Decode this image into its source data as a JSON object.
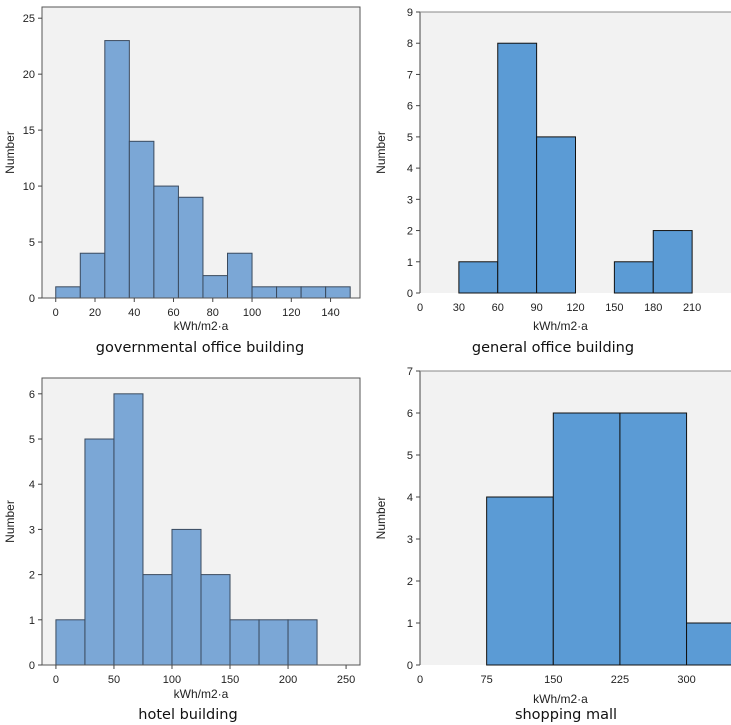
{
  "chart_data": [
    {
      "type": "bar",
      "caption": "governmental office building",
      "xlabel": "kWh/m2·a",
      "ylabel": "Number",
      "bin_width": 12.5,
      "bins_start": [
        0,
        12.5,
        25,
        37.5,
        50,
        62.5,
        75,
        87.5,
        100,
        112.5,
        125,
        137.5
      ],
      "values": [
        1,
        4,
        23,
        14,
        10,
        9,
        2,
        4,
        1,
        1,
        1,
        1
      ],
      "xlim": [
        -7,
        155
      ],
      "ylim": [
        0,
        26
      ],
      "xticks": [
        0,
        20,
        40,
        60,
        80,
        100,
        120,
        140
      ],
      "yticks": [
        0,
        5,
        10,
        15,
        20,
        25
      ],
      "bar_color": "#7ba7d6",
      "background": "#f2f2f2"
    },
    {
      "type": "bar",
      "caption": "general office building",
      "xlabel": "kWh/m2·a",
      "ylabel": "Number",
      "bin_width": 30,
      "bins_start": [
        30,
        60,
        90,
        150,
        180
      ],
      "values": [
        1,
        8,
        5,
        1,
        2
      ],
      "xlim": [
        0,
        240
      ],
      "ylim": [
        0,
        9
      ],
      "xticks": [
        0,
        30,
        60,
        90,
        120,
        150,
        180,
        210
      ],
      "xtick_labels": [
        "0",
        "30",
        "60",
        "90",
        "120",
        "150",
        "180",
        "210"
      ],
      "yticks": [
        0,
        1,
        2,
        3,
        4,
        5,
        6,
        7,
        8,
        9
      ],
      "bar_color": "#5b9bd5",
      "background": "#f2f2f2"
    },
    {
      "type": "bar",
      "caption": "hotel building",
      "xlabel": "kWh/m2·a",
      "ylabel": "Number",
      "bin_width": 25,
      "bins_start": [
        0,
        25,
        50,
        75,
        100,
        125,
        150,
        175,
        200
      ],
      "values": [
        1,
        5,
        6,
        2,
        3,
        2,
        1,
        1,
        1
      ],
      "xlim": [
        -12,
        262
      ],
      "ylim": [
        0,
        6.35
      ],
      "xticks": [
        0,
        50,
        100,
        150,
        200,
        250
      ],
      "yticks": [
        0,
        1,
        2,
        3,
        4,
        5,
        6
      ],
      "bar_color": "#7ba7d6",
      "background": "#f2f2f2"
    },
    {
      "type": "bar",
      "caption": "shopping mall",
      "xlabel": "kWh/m2·a",
      "ylabel": "Number",
      "bin_width": 75,
      "bins_start": [
        75,
        150,
        225,
        300
      ],
      "values": [
        4,
        6,
        6,
        1
      ],
      "xlim": [
        0,
        350
      ],
      "ylim": [
        0,
        7
      ],
      "xticks": [
        0,
        75,
        150,
        225,
        300
      ],
      "xtick_labels": [
        "0",
        "75",
        "150",
        "225",
        "300"
      ],
      "yticks": [
        0,
        1,
        2,
        3,
        4,
        5,
        6,
        7
      ],
      "bar_color": "#5b9bd5",
      "background": "#f2f2f2"
    }
  ]
}
